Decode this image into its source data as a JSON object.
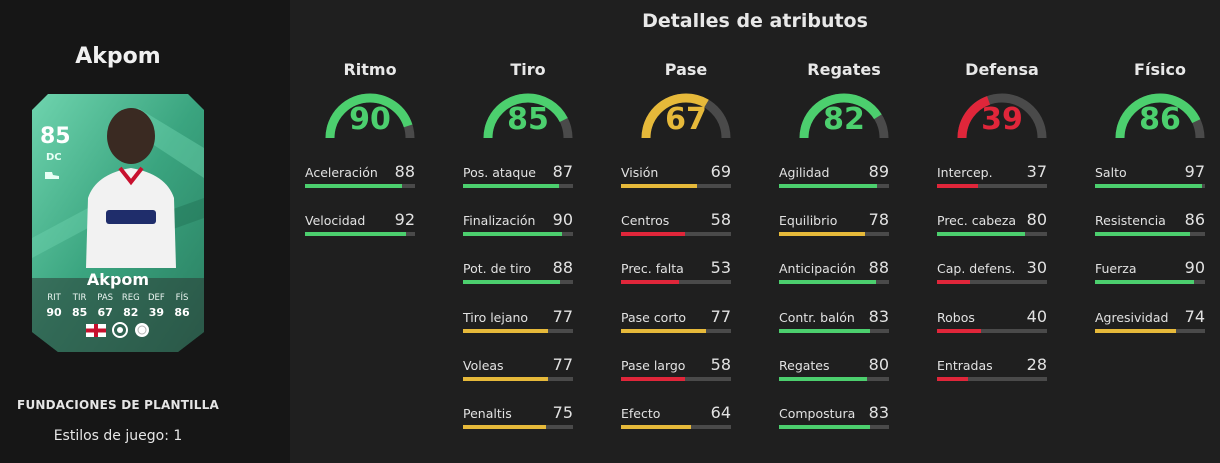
{
  "player": {
    "name": "Akpom",
    "card_name": "Akpom",
    "rating": "85",
    "position": "DC",
    "card_stats": [
      {
        "label": "RIT",
        "value": "90"
      },
      {
        "label": "TIR",
        "value": "85"
      },
      {
        "label": "PAS",
        "value": "67"
      },
      {
        "label": "REG",
        "value": "82"
      },
      {
        "label": "DEF",
        "value": "39"
      },
      {
        "label": "FÍS",
        "value": "86"
      }
    ],
    "edition": "FUNDACIONES DE PLANTILLA",
    "playstyles": "Estilos de juego: 1"
  },
  "details_title": "Detalles de atributos",
  "colors": {
    "high": "#4ccf6e",
    "mid": "#e6b93a",
    "low": "#e0263a",
    "card_green": "#3fae86"
  },
  "categories": [
    {
      "name": "Ritmo",
      "value": 90,
      "attributes": [
        {
          "name": "Aceleración",
          "value": 88
        },
        {
          "name": "Velocidad",
          "value": 92
        }
      ]
    },
    {
      "name": "Tiro",
      "value": 85,
      "attributes": [
        {
          "name": "Pos. ataque",
          "value": 87
        },
        {
          "name": "Finalización",
          "value": 90
        },
        {
          "name": "Pot. de tiro",
          "value": 88
        },
        {
          "name": "Tiro lejano",
          "value": 77
        },
        {
          "name": "Voleas",
          "value": 77
        },
        {
          "name": "Penaltis",
          "value": 75
        }
      ]
    },
    {
      "name": "Pase",
      "value": 67,
      "attributes": [
        {
          "name": "Visión",
          "value": 69
        },
        {
          "name": "Centros",
          "value": 58
        },
        {
          "name": "Prec. falta",
          "value": 53
        },
        {
          "name": "Pase corto",
          "value": 77
        },
        {
          "name": "Pase largo",
          "value": 58
        },
        {
          "name": "Efecto",
          "value": 64
        }
      ]
    },
    {
      "name": "Regates",
      "value": 82,
      "attributes": [
        {
          "name": "Agilidad",
          "value": 89
        },
        {
          "name": "Equilibrio",
          "value": 78
        },
        {
          "name": "Anticipación",
          "value": 88
        },
        {
          "name": "Contr. balón",
          "value": 83
        },
        {
          "name": "Regates",
          "value": 80
        },
        {
          "name": "Compostura",
          "value": 83
        }
      ]
    },
    {
      "name": "Defensa",
      "value": 39,
      "attributes": [
        {
          "name": "Intercep.",
          "value": 37
        },
        {
          "name": "Prec. cabeza",
          "value": 80
        },
        {
          "name": "Cap. defens.",
          "value": 30
        },
        {
          "name": "Robos",
          "value": 40
        },
        {
          "name": "Entradas",
          "value": 28
        }
      ]
    },
    {
      "name": "Físico",
      "value": 86,
      "attributes": [
        {
          "name": "Salto",
          "value": 97
        },
        {
          "name": "Resistencia",
          "value": 86
        },
        {
          "name": "Fuerza",
          "value": 90
        },
        {
          "name": "Agresividad",
          "value": 74
        }
      ]
    }
  ]
}
